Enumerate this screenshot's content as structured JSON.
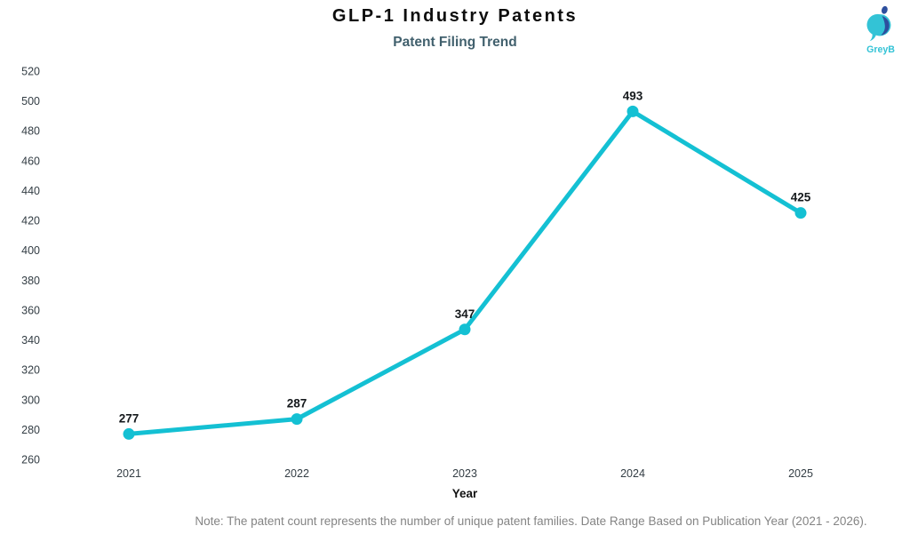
{
  "header": {
    "title": "GLP-1 Industry Patents",
    "subtitle": "Patent Filing Trend",
    "logo_text": "GreyB"
  },
  "chart_data": {
    "type": "line",
    "title": "GLP-1 Industry Patents",
    "subtitle": "Patent Filing Trend",
    "categories": [
      "2021",
      "2022",
      "2023",
      "2024",
      "2025"
    ],
    "values": [
      277,
      287,
      347,
      493,
      425
    ],
    "data_labels": [
      "277",
      "287",
      "347",
      "493",
      "425"
    ],
    "xlabel": "Year",
    "ylabel": "",
    "ylim": [
      260,
      520
    ],
    "yticks": [
      260,
      280,
      300,
      320,
      340,
      360,
      380,
      400,
      420,
      440,
      460,
      480,
      500,
      520
    ],
    "grid": false,
    "legend_position": "none",
    "line_color": "#14c0d3",
    "marker_color": "#14c0d3"
  },
  "footer": {
    "note": "Note: The patent count represents the number of unique patent families. Date Range Based on Publication Year (2021 - 2026)."
  },
  "colors": {
    "accent": "#14c0d3",
    "title": "#0d0d0d",
    "subtitle": "#41606d",
    "tick_label": "#333d44",
    "data_label": "#15191c",
    "note": "#848484",
    "logo_teal": "#33c3d6",
    "logo_navy": "#2d4f9e",
    "background": "#ffffff"
  }
}
